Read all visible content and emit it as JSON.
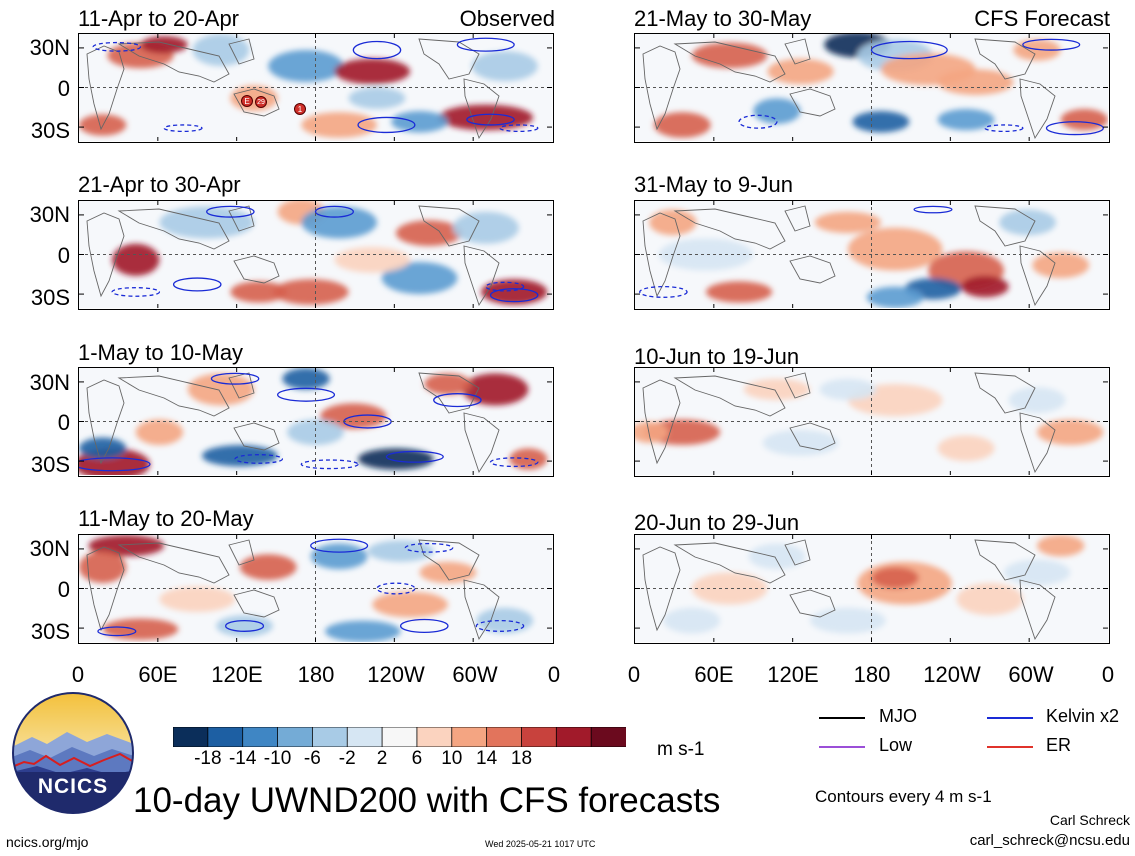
{
  "columns": {
    "left_title": "Observed",
    "right_title": "CFS Forecast"
  },
  "panels_left": [
    {
      "date": "11-Apr to 20-Apr"
    },
    {
      "date": "21-Apr to 30-Apr"
    },
    {
      "date": "1-May to 10-May"
    },
    {
      "date": "11-May to 20-May"
    }
  ],
  "panels_right": [
    {
      "date": "21-May to 30-May"
    },
    {
      "date": "31-May to 9-Jun"
    },
    {
      "date": "10-Jun to 19-Jun"
    },
    {
      "date": "20-Jun to 29-Jun"
    }
  ],
  "lat_labels": [
    "30N",
    "0",
    "30S"
  ],
  "lon_labels": [
    "0",
    "60E",
    "120E",
    "180",
    "120W",
    "60W",
    "0"
  ],
  "colorbar": {
    "labels": [
      "-18",
      "-14",
      "-10",
      "-6",
      "-2",
      "2",
      "6",
      "10",
      "14",
      "18"
    ],
    "colors": [
      "#0b2e5a",
      "#1d5fa3",
      "#3f86c4",
      "#74abd6",
      "#a8cbe6",
      "#d6e6f3",
      "#f7f7f7",
      "#fbd3bf",
      "#f4a582",
      "#e2745c",
      "#c8423d",
      "#a11a2a",
      "#6b0a1e"
    ],
    "units": "m s-1"
  },
  "legend": {
    "items": [
      {
        "label": "MJO",
        "color": "#000000"
      },
      {
        "label": "Kelvin x2",
        "color": "#1a2bd6"
      },
      {
        "label": "Low",
        "color": "#9b4fd8"
      },
      {
        "label": "ER",
        "color": "#e0332b"
      }
    ],
    "contours_note": "Contours every 4 m s-1"
  },
  "storm_markers": [
    "E",
    "29",
    "1"
  ],
  "logo": {
    "text": "NCICS"
  },
  "main_title": "10-day UWND200 with CFS forecasts",
  "credits": {
    "author": "Carl Schreck",
    "email": "carl_schreck@ncsu.edu",
    "url": "ncics.org/mjo",
    "timestamp": "Wed 2025-05-21 1017 UTC"
  }
}
